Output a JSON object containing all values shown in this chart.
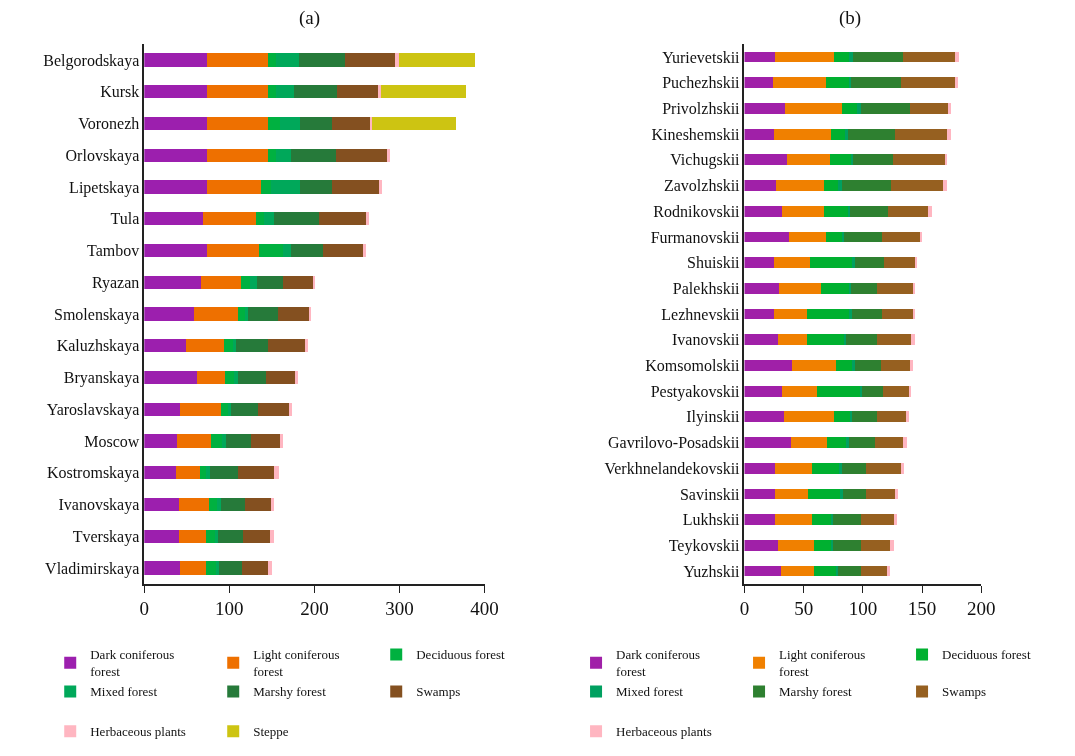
{
  "chart_data": [
    {
      "type": "bar",
      "orientation": "horizontal",
      "stacked": true,
      "title": "(a)",
      "legend": "bottom",
      "xlim": [
        0,
        400
      ],
      "xticks": [
        0,
        100,
        200,
        300,
        400
      ],
      "categories": [
        "Belgorodskaya",
        "Kursk",
        "Voronezh",
        "Orlovskaya",
        "Lipetskaya",
        "Tula",
        "Tambov",
        "Ryazan",
        "Smolenskaya",
        "Kaluzhskaya",
        "Bryanskaya",
        "Yaroslavskaya",
        "Moscow",
        "Kostromskaya",
        "Ivanovskaya",
        "Tverskaya",
        "Vladimirskaya"
      ],
      "series": [
        {
          "name": "Dark coniferous\nforest",
          "color": "#9c1fae",
          "values": [
            74,
            74,
            74,
            74,
            74,
            69,
            74,
            67,
            59,
            49,
            62,
            42,
            39,
            37,
            41,
            41,
            42
          ]
        },
        {
          "name": "Light coniferous\nforest",
          "color": "#ee7000",
          "values": [
            71,
            71,
            71,
            71,
            63,
            62,
            61,
            47,
            51,
            45,
            33,
            48,
            40,
            28,
            35,
            32,
            30
          ]
        },
        {
          "name": "Deciduous forest",
          "color": "#00b140",
          "values": [
            10,
            10,
            14,
            10,
            12,
            10,
            28,
            10,
            8,
            10,
            10,
            8,
            12,
            8,
            10,
            10,
            12
          ]
        },
        {
          "name": "Mixed forest",
          "color": "#00a85a",
          "values": [
            27,
            21,
            24,
            17,
            34,
            12,
            10,
            9,
            4,
            4,
            5,
            4,
            5,
            4,
            4,
            4,
            4
          ]
        },
        {
          "name": "Marshy forest",
          "color": "#267a3a",
          "values": [
            54,
            50,
            38,
            53,
            38,
            52,
            37,
            30,
            35,
            38,
            33,
            32,
            29,
            33,
            28,
            29,
            27
          ]
        },
        {
          "name": "Swamps",
          "color": "#845020",
          "values": [
            59,
            50,
            45,
            60,
            55,
            57,
            47,
            35,
            37,
            44,
            34,
            36,
            35,
            43,
            32,
            32,
            31
          ]
        },
        {
          "name": "Herbaceous plants",
          "color": "#ffb6c1",
          "values": [
            4,
            2,
            2,
            4,
            3,
            2,
            4,
            3,
            2,
            2,
            4,
            4,
            3,
            5,
            2,
            4,
            4
          ]
        },
        {
          "name": "Steppe",
          "color": "#cdc412",
          "values": [
            90,
            100,
            99,
            null,
            null,
            null,
            null,
            null,
            null,
            null,
            null,
            null,
            null,
            null,
            null,
            null,
            null
          ]
        }
      ]
    },
    {
      "type": "bar",
      "orientation": "horizontal",
      "stacked": true,
      "title": "(b)",
      "legend": "bottom",
      "xlim": [
        0,
        200
      ],
      "xticks": [
        0,
        50,
        100,
        150,
        200
      ],
      "categories": [
        "Yurievetskii",
        "Puchezhskii",
        "Privolzhskii",
        "Kineshemskii",
        "Vichugskii",
        "Zavolzhskii",
        "Rodnikovskii",
        "Furmanovskii",
        "Shuiskii",
        "Palekhskii",
        "Lezhnevskii",
        "Ivanovskii",
        "Komsomolskii",
        "Pestyakovskii",
        "Ilyinskii",
        "Gavrilovo-Posadskii",
        "Verkhnelandekovskii",
        "Savinskii",
        "Lukhskii",
        "Teykovskii",
        "Yuzhskii"
      ],
      "series": [
        {
          "name": "Dark coniferous\nforest",
          "color": "#a020a8",
          "values": [
            26,
            24,
            34,
            25,
            36,
            27,
            32,
            38,
            25,
            29,
            25,
            28,
            40,
            32,
            33,
            39,
            26,
            26,
            26,
            28,
            31
          ]
        },
        {
          "name": "Light coniferous\nforest",
          "color": "#f08000",
          "values": [
            50,
            45,
            48,
            48,
            36,
            40,
            35,
            31,
            30,
            36,
            28,
            25,
            37,
            29,
            43,
            31,
            31,
            28,
            31,
            31,
            28
          ]
        },
        {
          "name": "Deciduous forest",
          "color": "#00b030",
          "values": [
            12,
            19,
            13,
            12,
            18,
            12,
            21,
            13,
            36,
            23,
            35,
            31,
            14,
            37,
            13,
            16,
            23,
            27,
            17,
            14,
            18
          ]
        },
        {
          "name": "Mixed forest",
          "color": "#00a060",
          "values": [
            4,
            2,
            3,
            2,
            2,
            3,
            1,
            2,
            2,
            2,
            3,
            2,
            2,
            1,
            2,
            2,
            2,
            2,
            1,
            2,
            2
          ]
        },
        {
          "name": "Marshy forest",
          "color": "#2e8030",
          "values": [
            42,
            42,
            42,
            40,
            33,
            42,
            32,
            32,
            25,
            22,
            25,
            26,
            22,
            18,
            21,
            22,
            21,
            20,
            23,
            23,
            19
          ]
        },
        {
          "name": "Swamps",
          "color": "#966020",
          "values": [
            44,
            46,
            32,
            44,
            44,
            44,
            34,
            32,
            26,
            30,
            26,
            29,
            25,
            22,
            24,
            24,
            29,
            24,
            28,
            25,
            22
          ]
        },
        {
          "name": "Herbaceous plants",
          "color": "#ffb6c1",
          "values": [
            3,
            2,
            2,
            3,
            2,
            3,
            3,
            2,
            2,
            2,
            2,
            3,
            2,
            2,
            3,
            3,
            3,
            3,
            3,
            3,
            3
          ]
        }
      ]
    }
  ]
}
